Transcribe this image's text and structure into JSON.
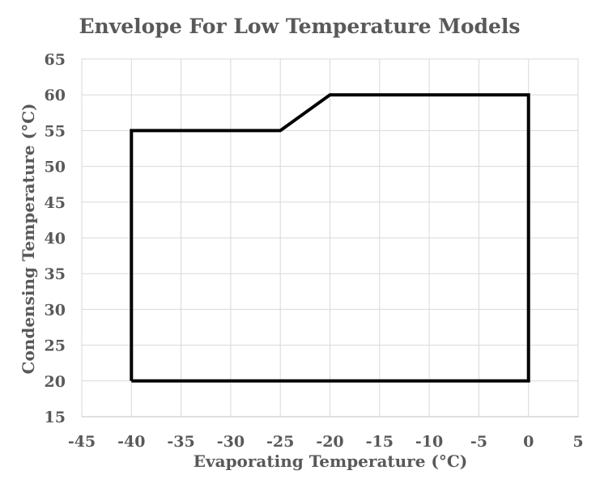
{
  "chart_data": {
    "type": "line",
    "title": "Envelope For Low Temperature Models",
    "xlabel": "Evaporating Temperature (°C)",
    "ylabel": "Condensing Temperature (°C)",
    "xlim": [
      -45,
      5
    ],
    "ylim": [
      15,
      65
    ],
    "x_ticks": [
      -45,
      -40,
      -35,
      -30,
      -25,
      -20,
      -15,
      -10,
      -5,
      0,
      5
    ],
    "y_ticks": [
      15,
      20,
      25,
      30,
      35,
      40,
      45,
      50,
      55,
      60,
      65
    ],
    "grid": true,
    "legend": "none",
    "series": [
      {
        "color": "#000000",
        "points": [
          {
            "x": -40,
            "y": 20
          },
          {
            "x": -40,
            "y": 55
          },
          {
            "x": -25,
            "y": 55
          },
          {
            "x": -20,
            "y": 60
          },
          {
            "x": 0,
            "y": 60
          },
          {
            "x": 0,
            "y": 20
          },
          {
            "x": -40,
            "y": 20
          }
        ]
      }
    ]
  }
}
